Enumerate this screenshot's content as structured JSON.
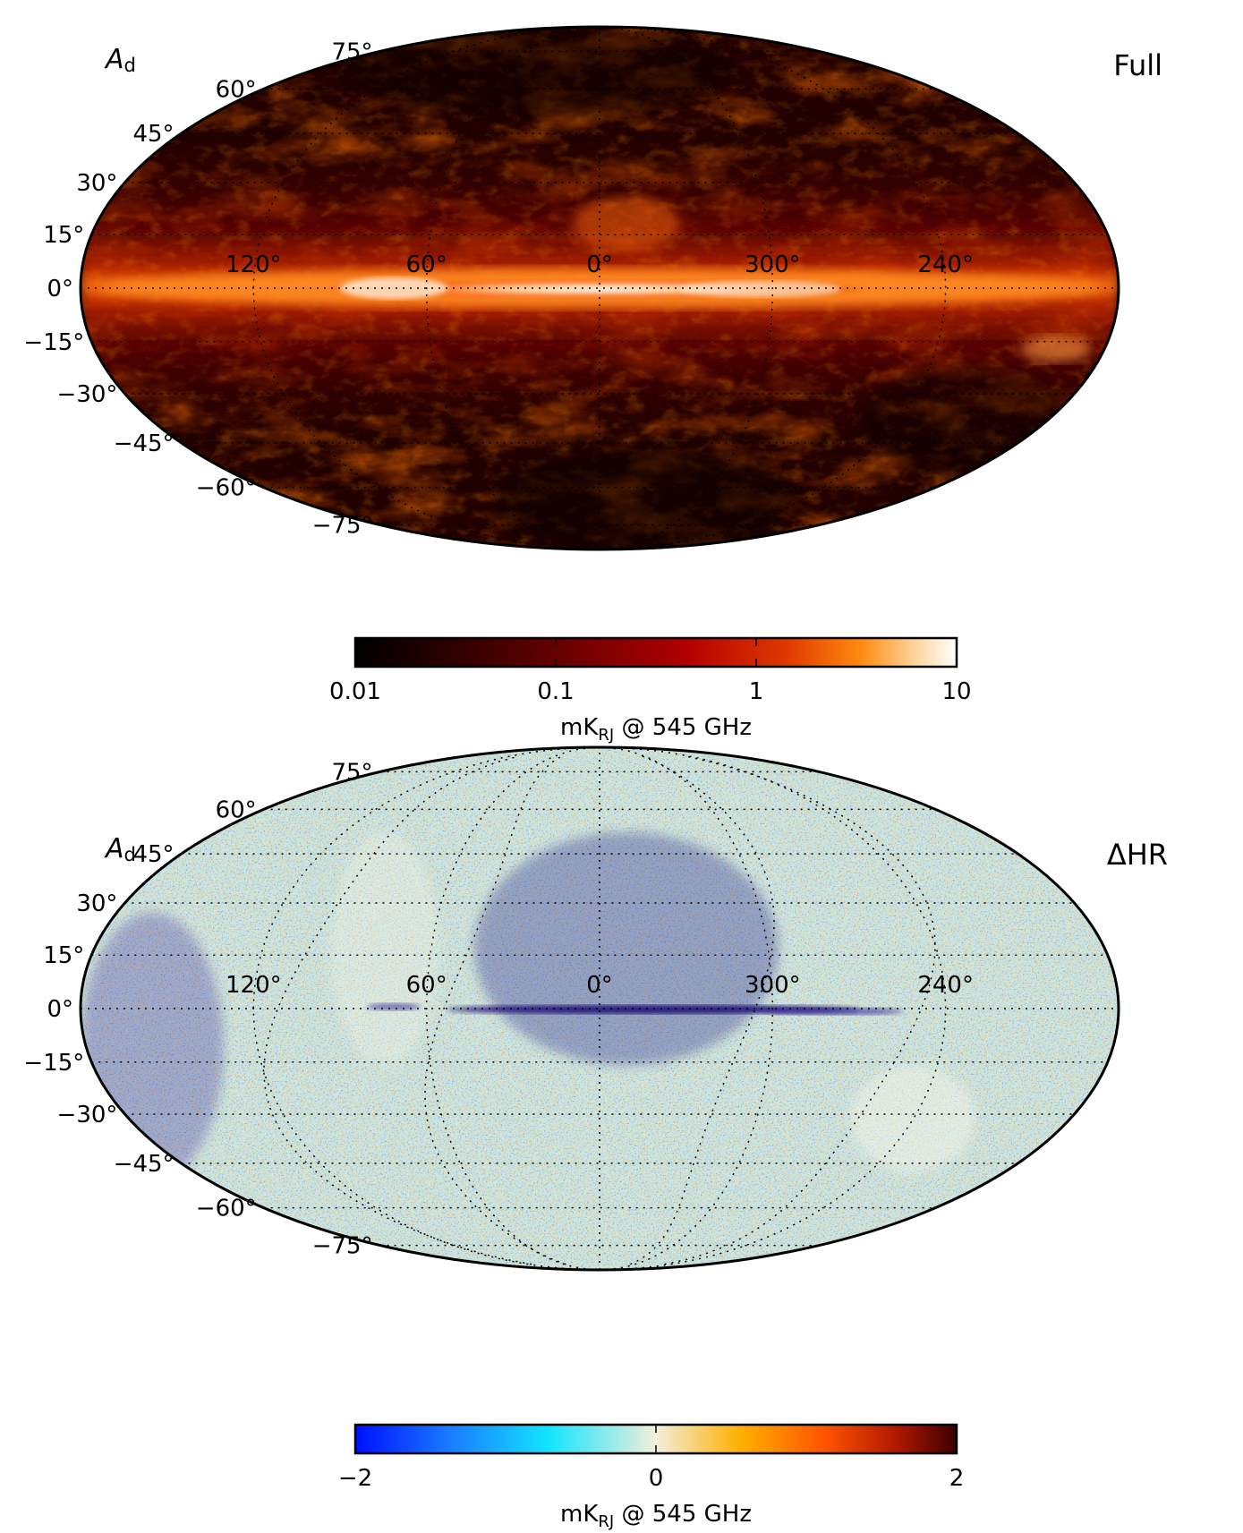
{
  "chart_data": [
    {
      "type": "heatmap",
      "projection": "mollweide",
      "panel_symbol": "A",
      "panel_symbol_sub": "d",
      "panel_label": "Full",
      "latitude_labels": [
        "75°",
        "60°",
        "45°",
        "30°",
        "15°",
        "0°",
        "−15°",
        "−30°",
        "−45°",
        "−60°",
        "−75°"
      ],
      "latitude_values": [
        75,
        60,
        45,
        30,
        15,
        0,
        -15,
        -30,
        -45,
        -60,
        -75
      ],
      "longitude_labels": [
        "120°",
        "60°",
        "0°",
        "300°",
        "240°"
      ],
      "longitude_values": [
        120,
        60,
        0,
        300,
        240
      ],
      "colorbar": {
        "scale": "log",
        "range": [
          0.01,
          10
        ],
        "tick_labels": [
          "0.01",
          "0.1",
          "1",
          "10"
        ],
        "tick_values": [
          0.01,
          0.1,
          1,
          10
        ],
        "label_main": "mK",
        "label_sub": "RJ",
        "label_rest": " @ 545 GHz",
        "colors": [
          "#000000",
          "#2a0000",
          "#6a0000",
          "#b00000",
          "#e03a00",
          "#ff8a10",
          "#ffd49a",
          "#ffffff"
        ]
      },
      "description_features": "bright dust emission concentrated along the Galactic plane (latitude 0°), brightest toward longitude 0°"
    },
    {
      "type": "heatmap",
      "projection": "mollweide",
      "panel_symbol": "A",
      "panel_symbol_sub": "d",
      "panel_label": "ΔHR",
      "latitude_labels": [
        "75°",
        "60°",
        "45°",
        "30°",
        "15°",
        "0°",
        "−15°",
        "−30°",
        "−45°",
        "−60°",
        "−75°"
      ],
      "latitude_values": [
        75,
        60,
        45,
        30,
        15,
        0,
        -15,
        -30,
        -45,
        -60,
        -75
      ],
      "longitude_labels": [
        "120°",
        "60°",
        "0°",
        "300°",
        "240°"
      ],
      "longitude_values": [
        120,
        60,
        0,
        300,
        240
      ],
      "colorbar": {
        "scale": "linear",
        "range": [
          -2,
          2
        ],
        "tick_labels": [
          "−2",
          "0",
          "2"
        ],
        "tick_values": [
          -2,
          0,
          2
        ],
        "label_main": "mK",
        "label_sub": "RJ",
        "label_rest": " @ 545 GHz",
        "colors": [
          "#0010ff",
          "#1a7dff",
          "#12e4ff",
          "#f2efdc",
          "#ffb000",
          "#ff5400",
          "#b01800",
          "#3a0000"
        ]
      },
      "description_features": "noise-like half-ring difference map with a dark negative streak along the Galactic plane"
    }
  ]
}
